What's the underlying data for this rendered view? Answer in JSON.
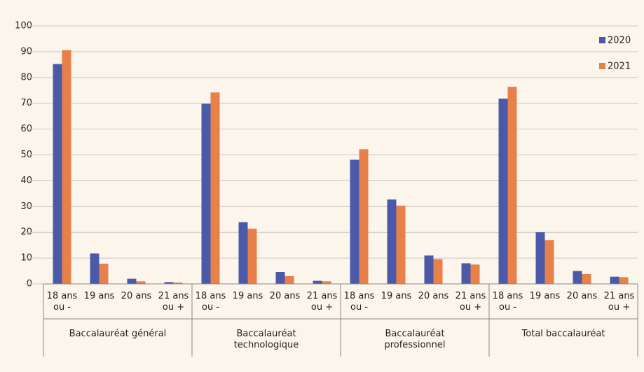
{
  "chart_data": {
    "type": "bar",
    "categories": [
      "18 ans ou -",
      "19 ans",
      "20 ans",
      "21 ans ou +",
      "18 ans ou -",
      "19 ans",
      "20 ans",
      "21 ans ou +",
      "18 ans ou -",
      "19 ans",
      "20 ans",
      "21 ans ou +",
      "18 ans ou -",
      "19 ans",
      "20 ans",
      "21 ans ou +"
    ],
    "category_groups": [
      "Baccalauréat général",
      "Baccalauréat technologique",
      "Baccalauréat professionnel",
      "Total baccalauréat"
    ],
    "series": [
      {
        "name": "2020",
        "color": "#4a5aa8",
        "values": [
          85.2,
          11.8,
          2.0,
          0.7,
          69.8,
          23.9,
          4.6,
          1.2,
          48.1,
          32.7,
          11.0,
          8.0,
          71.8,
          20.0,
          5.0,
          2.8
        ]
      },
      {
        "name": "2021",
        "color": "#e8804a",
        "values": [
          90.6,
          7.8,
          1.0,
          0.5,
          74.2,
          21.4,
          3.0,
          1.0,
          52.2,
          30.3,
          9.6,
          7.5,
          76.4,
          17.0,
          3.8,
          2.6
        ]
      }
    ],
    "ylim": [
      0,
      100
    ],
    "yticks": [
      0,
      10,
      20,
      30,
      40,
      50,
      60,
      70,
      80,
      90,
      100
    ],
    "grid": true,
    "legend": "top-right"
  }
}
